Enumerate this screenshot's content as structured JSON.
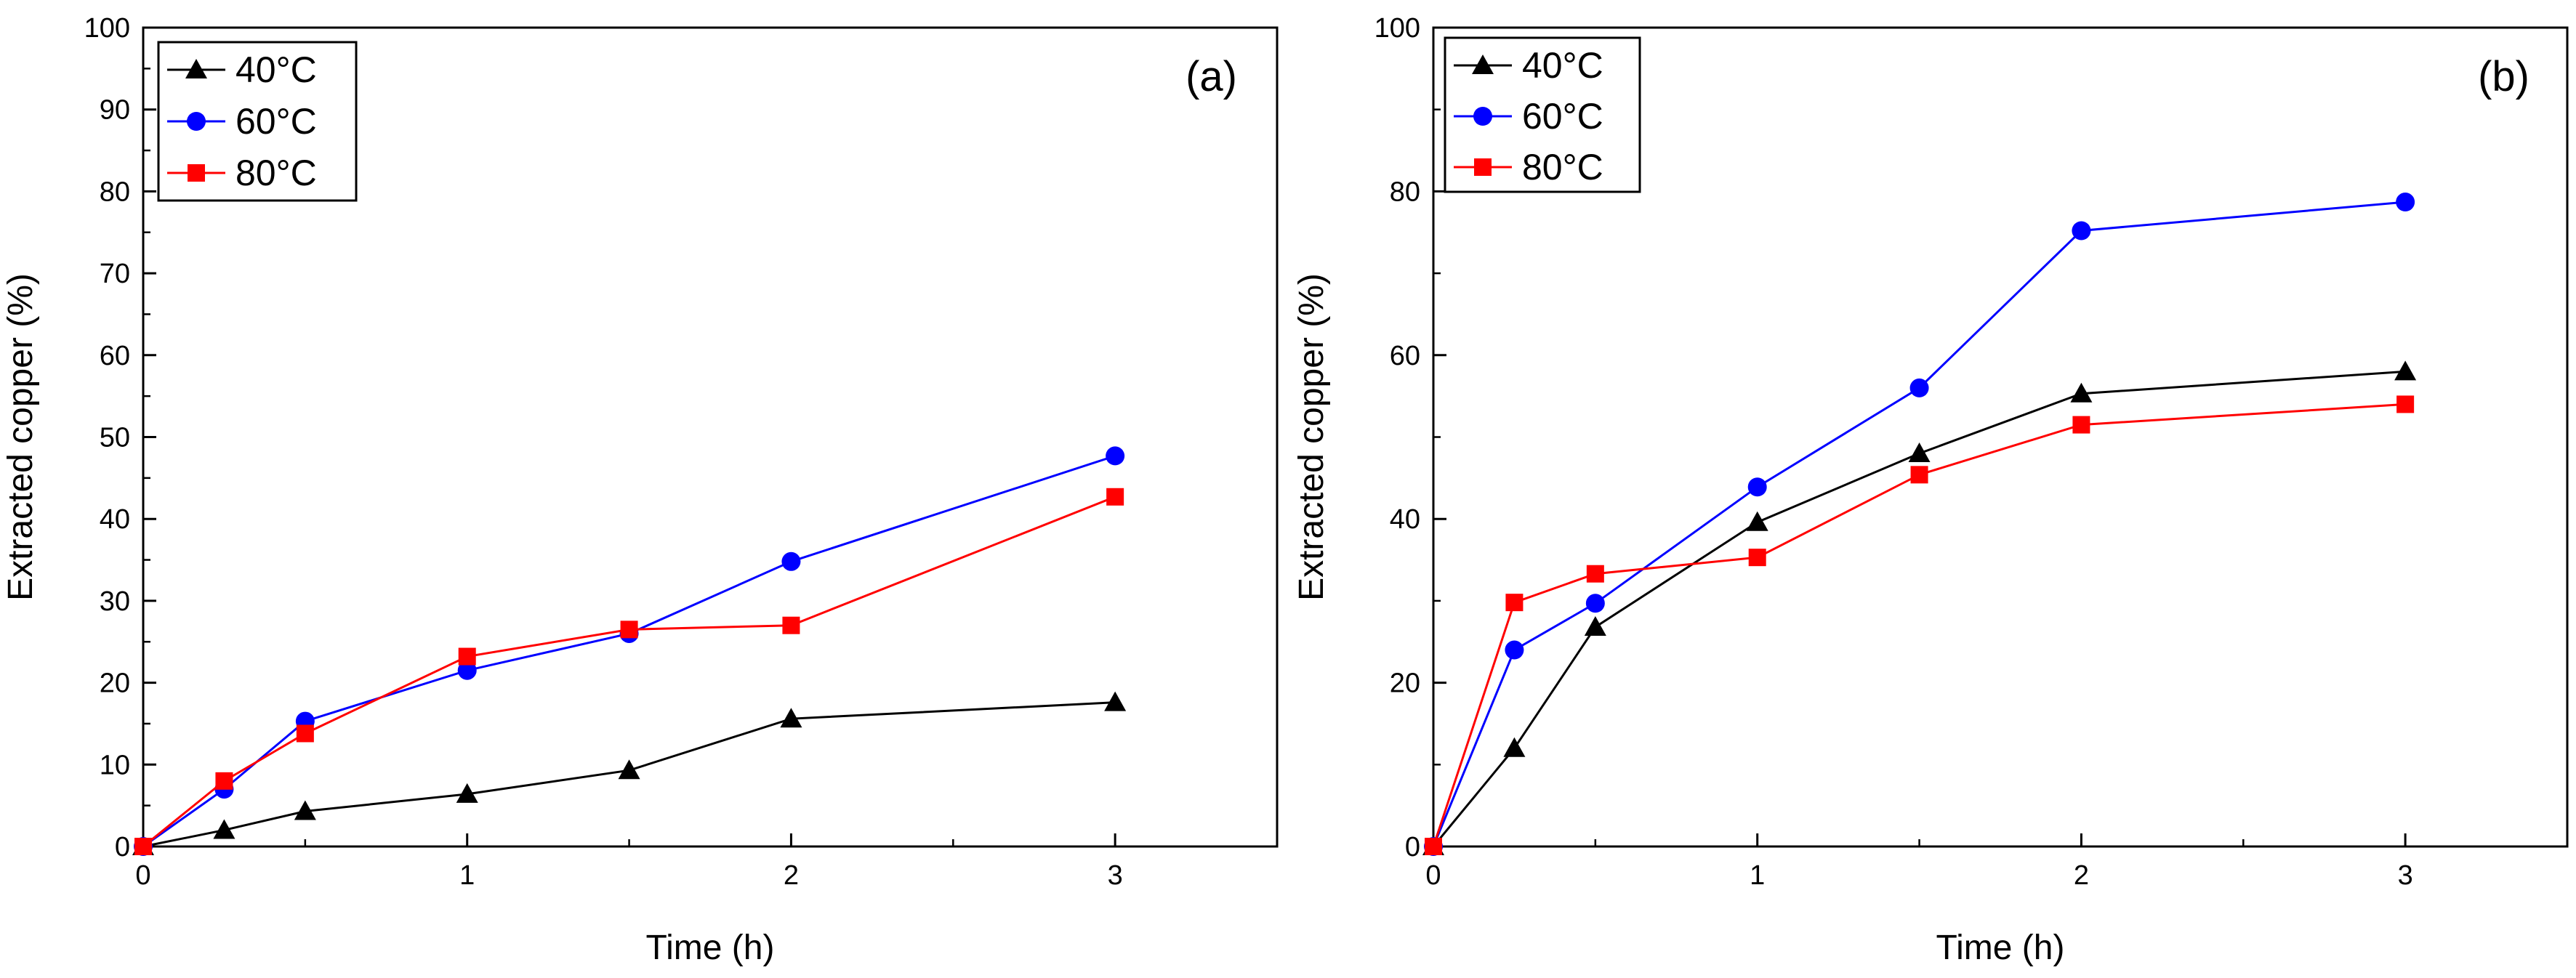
{
  "chart_data": [
    {
      "type": "line",
      "panel_label": "(a)",
      "xlabel": "Time (h)",
      "ylabel": "Extracted copper (%)",
      "xlim": [
        0,
        3.5
      ],
      "ylim": [
        0,
        100
      ],
      "x_ticks": [
        0,
        1,
        2,
        3
      ],
      "y_ticks": [
        0,
        10,
        20,
        30,
        40,
        50,
        60,
        70,
        80,
        90,
        100
      ],
      "legend_position": "top-left",
      "x": [
        0,
        0.25,
        0.5,
        1,
        1.5,
        2,
        3
      ],
      "series": [
        {
          "name": "40°C",
          "color": "#000000",
          "marker": "triangle",
          "values": [
            0,
            2,
            4.3,
            6.4,
            9.3,
            15.6,
            17.6
          ]
        },
        {
          "name": "60°C",
          "color": "#0000ff",
          "marker": "circle",
          "values": [
            0,
            7,
            15.3,
            21.5,
            26,
            34.8,
            47.7
          ]
        },
        {
          "name": "80°C",
          "color": "#ff0000",
          "marker": "square",
          "values": [
            0,
            8,
            13.8,
            23.2,
            26.5,
            27,
            42.7
          ]
        }
      ]
    },
    {
      "type": "line",
      "panel_label": "(b)",
      "xlabel": "Time (h)",
      "ylabel": "Extracted copper (%)",
      "xlim": [
        0,
        3.5
      ],
      "ylim": [
        0,
        100
      ],
      "x_ticks": [
        0,
        1,
        2,
        3
      ],
      "y_ticks": [
        0,
        20,
        40,
        60,
        80,
        100
      ],
      "legend_position": "top-left",
      "x": [
        0,
        0.25,
        0.5,
        1,
        1.5,
        2,
        3
      ],
      "series": [
        {
          "name": "40°C",
          "color": "#000000",
          "marker": "triangle",
          "values": [
            0,
            12,
            26.8,
            39.6,
            48,
            55.3,
            58
          ]
        },
        {
          "name": "60°C",
          "color": "#0000ff",
          "marker": "circle",
          "values": [
            0,
            24,
            29.7,
            43.9,
            56,
            75.2,
            78.7
          ]
        },
        {
          "name": "80°C",
          "color": "#ff0000",
          "marker": "square",
          "values": [
            0,
            29.8,
            33.3,
            35.3,
            45.4,
            51.5,
            54
          ]
        }
      ]
    }
  ]
}
